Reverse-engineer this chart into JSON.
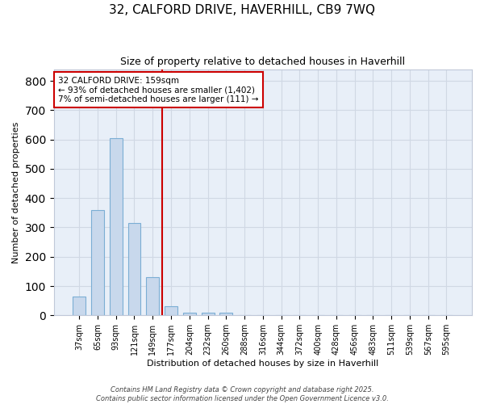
{
  "title_line1": "32, CALFORD DRIVE, HAVERHILL, CB9 7WQ",
  "title_line2": "Size of property relative to detached houses in Haverhill",
  "xlabel": "Distribution of detached houses by size in Haverhill",
  "ylabel": "Number of detached properties",
  "categories": [
    "37sqm",
    "65sqm",
    "93sqm",
    "121sqm",
    "149sqm",
    "177sqm",
    "204sqm",
    "232sqm",
    "260sqm",
    "288sqm",
    "316sqm",
    "344sqm",
    "372sqm",
    "400sqm",
    "428sqm",
    "456sqm",
    "483sqm",
    "511sqm",
    "539sqm",
    "567sqm",
    "595sqm"
  ],
  "values": [
    65,
    360,
    605,
    315,
    130,
    30,
    8,
    8,
    8,
    0,
    0,
    0,
    0,
    0,
    0,
    0,
    0,
    0,
    0,
    0,
    0
  ],
  "bar_color": "#c8d8ec",
  "bar_edge_color": "#7baed4",
  "grid_color": "#d0d8e4",
  "plot_bg_color": "#e8eff8",
  "fig_bg_color": "#ffffff",
  "red_line_x": 4.5,
  "annotation_text": "32 CALFORD DRIVE: 159sqm\n← 93% of detached houses are smaller (1,402)\n7% of semi-detached houses are larger (111) →",
  "annotation_box_color": "#ffffff",
  "annotation_text_color": "#000000",
  "annotation_border_color": "#cc0000",
  "red_line_color": "#cc0000",
  "ylim": [
    0,
    840
  ],
  "yticks": [
    0,
    100,
    200,
    300,
    400,
    500,
    600,
    700,
    800
  ],
  "footer_line1": "Contains HM Land Registry data © Crown copyright and database right 2025.",
  "footer_line2": "Contains public sector information licensed under the Open Government Licence v3.0."
}
